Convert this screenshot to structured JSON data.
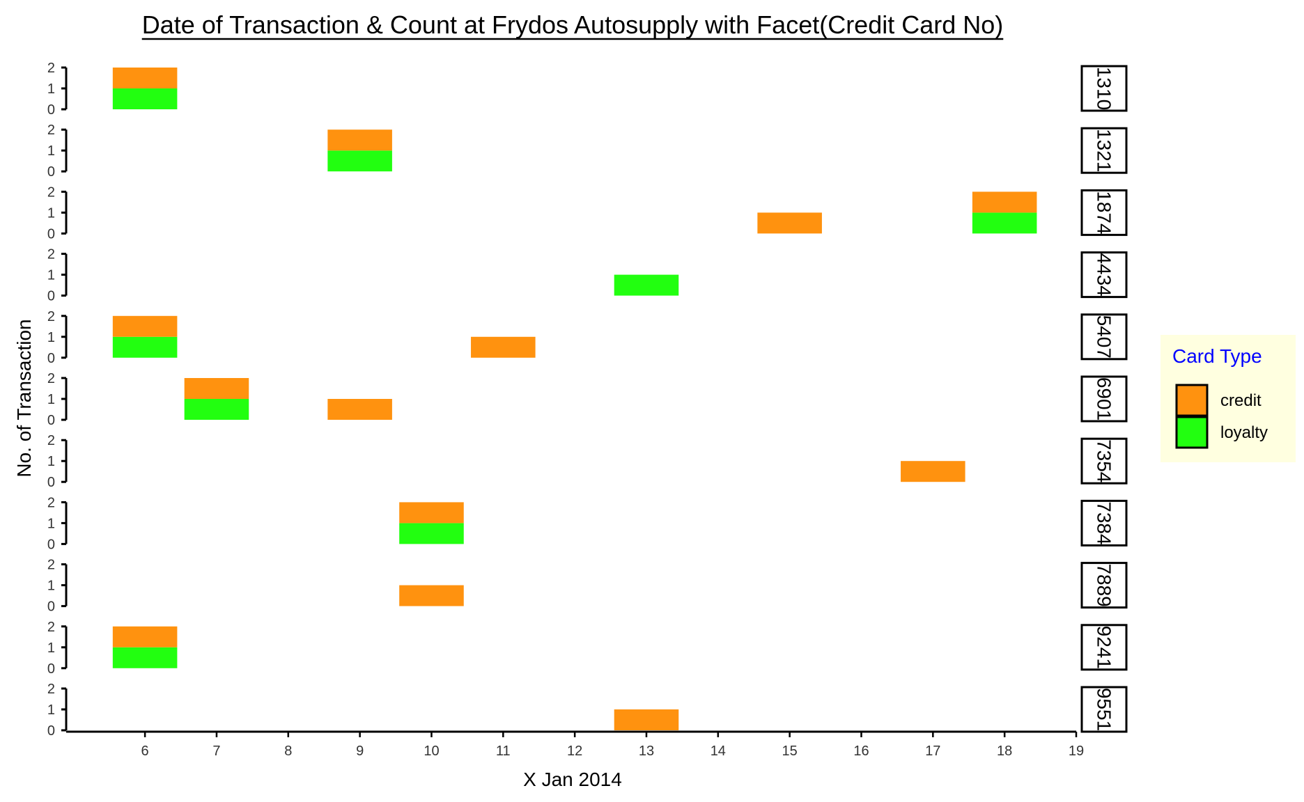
{
  "chart_data": {
    "type": "bar",
    "title": "Date of Transaction & Count at Frydos Autosupply with Facet(Credit Card No)",
    "xlabel": "X Jan 2014",
    "ylabel": "No. of Transaction",
    "x_ticks": [
      6,
      7,
      8,
      9,
      10,
      11,
      12,
      13,
      14,
      15,
      16,
      17,
      18,
      19
    ],
    "xlim": [
      4.9,
      19
    ],
    "y_ticks": [
      0,
      1,
      2
    ],
    "ylim": [
      0,
      2
    ],
    "stacked": true,
    "legend": {
      "title": "Card Type",
      "placement": "right",
      "entries": [
        {
          "name": "credit",
          "color": "#FF920F"
        },
        {
          "name": "loyalty",
          "color": "#22FF10"
        }
      ]
    },
    "colors": {
      "credit": "#FF920F",
      "loyalty": "#22FF10",
      "legend_background": "#FFFFE0",
      "legend_title": "#0000FF"
    },
    "facets": [
      {
        "label": "1310",
        "bars": [
          {
            "x": 6,
            "loyalty": 1,
            "credit": 1
          }
        ]
      },
      {
        "label": "1321",
        "bars": [
          {
            "x": 9,
            "loyalty": 1,
            "credit": 1
          }
        ]
      },
      {
        "label": "1874",
        "bars": [
          {
            "x": 15,
            "loyalty": 0,
            "credit": 1
          },
          {
            "x": 18,
            "loyalty": 1,
            "credit": 1
          }
        ]
      },
      {
        "label": "4434",
        "bars": [
          {
            "x": 13,
            "loyalty": 1,
            "credit": 0
          }
        ]
      },
      {
        "label": "5407",
        "bars": [
          {
            "x": 6,
            "loyalty": 1,
            "credit": 1
          },
          {
            "x": 11,
            "loyalty": 0,
            "credit": 1
          }
        ]
      },
      {
        "label": "6901",
        "bars": [
          {
            "x": 7,
            "loyalty": 1,
            "credit": 1
          },
          {
            "x": 9,
            "loyalty": 0,
            "credit": 1
          }
        ]
      },
      {
        "label": "7354",
        "bars": [
          {
            "x": 17,
            "loyalty": 0,
            "credit": 1
          }
        ]
      },
      {
        "label": "7384",
        "bars": [
          {
            "x": 10,
            "loyalty": 1,
            "credit": 1
          }
        ]
      },
      {
        "label": "7889",
        "bars": [
          {
            "x": 10,
            "loyalty": 0,
            "credit": 1
          }
        ]
      },
      {
        "label": "9241",
        "bars": [
          {
            "x": 6,
            "loyalty": 1,
            "credit": 1
          }
        ]
      },
      {
        "label": "9551",
        "bars": [
          {
            "x": 13,
            "loyalty": 0,
            "credit": 1
          }
        ]
      }
    ]
  }
}
